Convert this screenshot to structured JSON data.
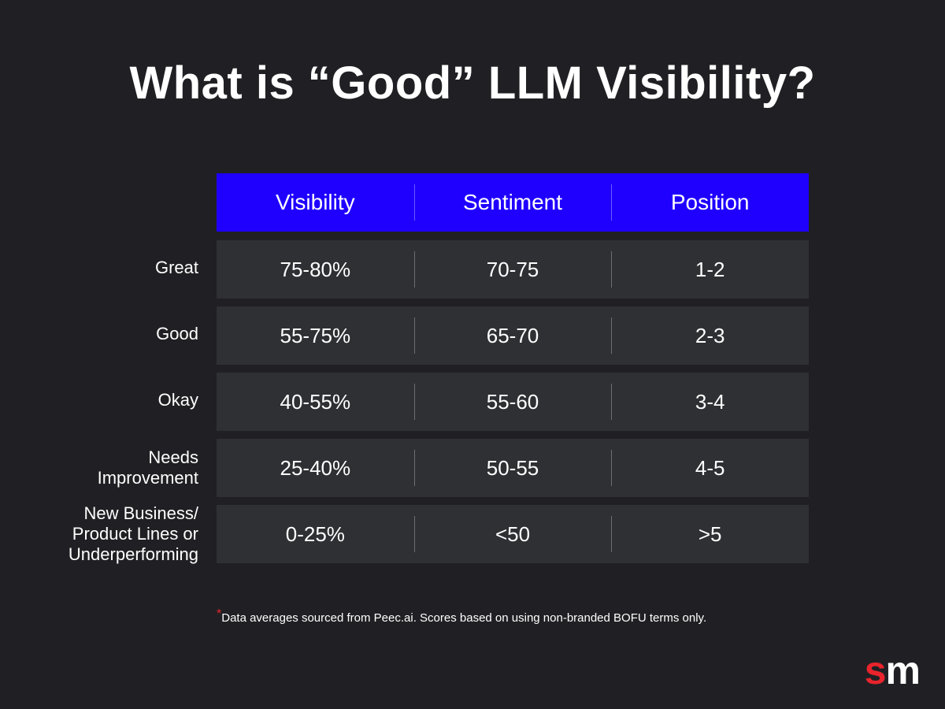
{
  "title": "What is “Good” LLM Visibility?",
  "header_color": "#1f00ff",
  "accent_color": "#e8242c",
  "columns": [
    "Visibility",
    "Sentiment",
    "Position"
  ],
  "rows": [
    {
      "label": "Great",
      "values": [
        "75-80%",
        "70-75",
        "1-2"
      ]
    },
    {
      "label": "Good",
      "values": [
        "55-75%",
        "65-70",
        "2-3"
      ]
    },
    {
      "label": "Okay",
      "values": [
        "40-55%",
        "55-60",
        "3-4"
      ]
    },
    {
      "label": "Needs Improvement",
      "label_lines": [
        "Needs",
        "Improvement"
      ],
      "values": [
        "25-40%",
        "50-55",
        "4-5"
      ]
    },
    {
      "label": "New Business/ Product Lines or Underperforming",
      "label_lines": [
        "New Business/",
        "Product Lines or",
        "Underperforming"
      ],
      "values": [
        "0-25%",
        "<50",
        ">5"
      ]
    }
  ],
  "footnote": {
    "marker": "*",
    "text": "Data averages sourced from Peec.ai. Scores based on using non-branded BOFU terms only."
  },
  "logo": {
    "s": "s",
    "m": "m"
  }
}
